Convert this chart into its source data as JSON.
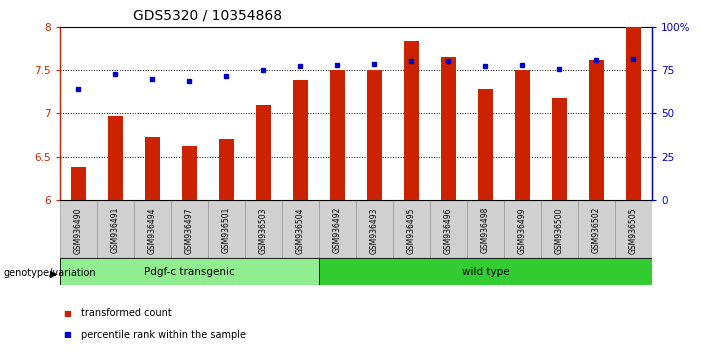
{
  "title": "GDS5320 / 10354868",
  "categories": [
    "GSM936490",
    "GSM936491",
    "GSM936494",
    "GSM936497",
    "GSM936501",
    "GSM936503",
    "GSM936504",
    "GSM936492",
    "GSM936493",
    "GSM936495",
    "GSM936496",
    "GSM936498",
    "GSM936499",
    "GSM936500",
    "GSM936502",
    "GSM936505"
  ],
  "bar_values": [
    6.38,
    6.97,
    6.73,
    6.62,
    6.7,
    7.1,
    7.38,
    7.5,
    7.5,
    7.83,
    7.65,
    7.28,
    7.5,
    7.18,
    7.62,
    8.0
  ],
  "dot_values": [
    7.28,
    7.45,
    7.4,
    7.37,
    7.43,
    7.5,
    7.54,
    7.56,
    7.57,
    7.6,
    7.6,
    7.55,
    7.56,
    7.51,
    7.62,
    7.63
  ],
  "groups": [
    {
      "label": "Pdgf-c transgenic",
      "start": 0,
      "end": 7,
      "color": "#90ee90"
    },
    {
      "label": "wild type",
      "start": 7,
      "end": 16,
      "color": "#33cc33"
    }
  ],
  "ylim_left": [
    6.0,
    8.0
  ],
  "ylim_right": [
    0,
    100
  ],
  "yticks_left": [
    6.0,
    6.5,
    7.0,
    7.5,
    8.0
  ],
  "yticks_right": [
    0,
    25,
    50,
    75,
    100
  ],
  "bar_color": "#cc2200",
  "dot_color": "#0000cc",
  "bar_width": 0.4,
  "background_color": "#ffffff",
  "gridlines": [
    6.5,
    7.0,
    7.5
  ],
  "legend_bar_label": "transformed count",
  "legend_dot_label": "percentile rank within the sample",
  "genotype_label": "genotype/variation",
  "title_fontsize": 10,
  "n_transgenic": 7,
  "n_total": 16
}
